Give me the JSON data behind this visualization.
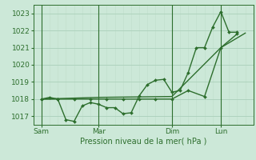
{
  "xlabel": "Pression niveau de la mer( hPa )",
  "bg_color": "#cce8d8",
  "line_color": "#2d6e2d",
  "grid_color_major": "#aacfba",
  "grid_color_minor": "#c0deca",
  "ylim": [
    1016.5,
    1023.5
  ],
  "yticks": [
    1017,
    1018,
    1019,
    1020,
    1021,
    1022,
    1023
  ],
  "xtick_labels": [
    "Sam",
    "Mar",
    "Dim",
    "Lun"
  ],
  "xtick_positions": [
    0,
    28,
    64,
    88
  ],
  "xlim": [
    -4,
    104
  ],
  "vline_positions": [
    0,
    28,
    64,
    88
  ],
  "line1_x": [
    0,
    4,
    8,
    12,
    16,
    20,
    24,
    28,
    32,
    36,
    40,
    44,
    48,
    52,
    56,
    60,
    64,
    68,
    72,
    76,
    80,
    84,
    88,
    92,
    96
  ],
  "line1_y": [
    1018.0,
    1018.1,
    1018.0,
    1016.8,
    1016.7,
    1017.6,
    1017.8,
    1017.7,
    1017.5,
    1017.5,
    1017.15,
    1017.2,
    1018.2,
    1018.85,
    1019.1,
    1019.15,
    1018.4,
    1018.5,
    1019.55,
    1021.0,
    1021.0,
    1022.2,
    1023.1,
    1021.9,
    1021.9
  ],
  "line2_x": [
    0,
    8,
    16,
    24,
    32,
    40,
    48,
    56,
    64,
    72,
    80,
    88,
    96
  ],
  "line2_y": [
    1018.0,
    1018.0,
    1018.0,
    1018.0,
    1018.0,
    1018.0,
    1018.0,
    1018.0,
    1018.0,
    1018.5,
    1018.15,
    1021.0,
    1021.8
  ],
  "line3_x": [
    0,
    28,
    64,
    88,
    100
  ],
  "line3_y": [
    1018.0,
    1018.1,
    1018.15,
    1021.0,
    1021.85
  ],
  "marker_size": 2.0,
  "line_width": 1.0
}
